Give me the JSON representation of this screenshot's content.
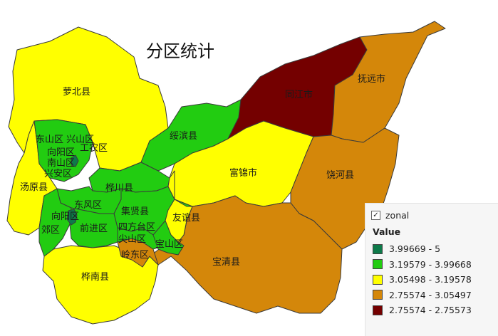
{
  "map": {
    "title": "分区统计",
    "regions": [
      {
        "id": "luobei",
        "name": "萝北县",
        "color": "#ffff00"
      },
      {
        "id": "suibin",
        "name": "绥滨县",
        "color": "#22cc11"
      },
      {
        "id": "tongjiang",
        "name": "同江市",
        "color": "#740000"
      },
      {
        "id": "fuyuan",
        "name": "抚远市",
        "color": "#d4870a"
      },
      {
        "id": "fujin",
        "name": "富锦市",
        "color": "#ffff00"
      },
      {
        "id": "raohe",
        "name": "饶河县",
        "color": "#d4870a"
      },
      {
        "id": "baoqing",
        "name": "宝清县",
        "color": "#d4870a"
      },
      {
        "id": "tangyuan",
        "name": "汤原县",
        "color": "#ffff00"
      },
      {
        "id": "huachuan",
        "name": "桦川县",
        "color": "#22cc11"
      },
      {
        "id": "jixian",
        "name": "集贤县",
        "color": "#22cc11"
      },
      {
        "id": "youyi",
        "name": "友谊县",
        "color": "#ffff00"
      },
      {
        "id": "huanan",
        "name": "桦南县",
        "color": "#ffff00"
      },
      {
        "id": "lingdong",
        "name": "岭东区",
        "color": "#d4870a"
      },
      {
        "id": "sifangtai",
        "name": "四方台区",
        "color": "#22cc11"
      },
      {
        "id": "jianshan",
        "name": "尖山区",
        "color": "#22cc11"
      },
      {
        "id": "baoshan",
        "name": "宝山区",
        "color": "#22cc11"
      },
      {
        "id": "dongfeng",
        "name": "东风区",
        "color": "#22cc11"
      },
      {
        "id": "xiangyang",
        "name": "向阳区",
        "color": "#22cc11"
      },
      {
        "id": "jiao",
        "name": "郊区",
        "color": "#22cc11"
      },
      {
        "id": "qiande",
        "name": "前进区",
        "color": "#22cc11"
      },
      {
        "id": "dongshan_xingshan",
        "name": "东山区 兴山区",
        "color": "#22cc11"
      },
      {
        "id": "xiangyang2",
        "name": "向阳区",
        "color": "#22cc11"
      },
      {
        "id": "nanshan",
        "name": "南山区",
        "color": "#22cc11"
      },
      {
        "id": "xingan",
        "name": "兴安区",
        "color": "#22cc11"
      },
      {
        "id": "gongnong",
        "name": "工农区",
        "color": "#22cc11"
      }
    ]
  },
  "legend": {
    "layer_name": "zonal",
    "checked": true,
    "heading": "Value",
    "classes": [
      {
        "label": "3.99669 - 5",
        "color": "#0e7a4a"
      },
      {
        "label": "3.19579 - 3.99668",
        "color": "#22cc11"
      },
      {
        "label": "3.05498 - 3.19578",
        "color": "#ffff00"
      },
      {
        "label": "2.75574 - 3.05497",
        "color": "#d4870a"
      },
      {
        "label": "2.75574 - 2.75573",
        "color": "#740000"
      }
    ]
  }
}
